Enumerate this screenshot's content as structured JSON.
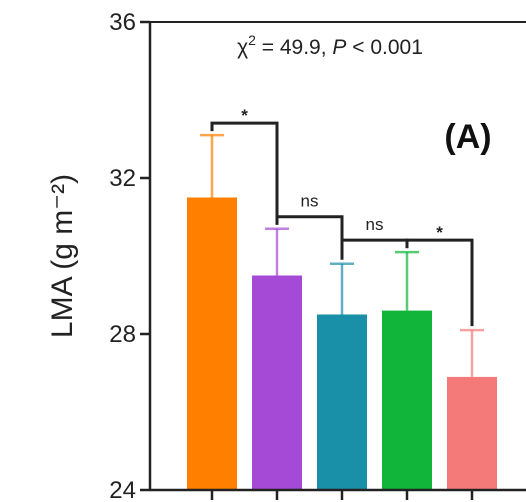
{
  "chart_data": {
    "type": "bar",
    "ylabel": "LMA (g m⁻²)",
    "ylim": [
      24,
      36
    ],
    "yticks": [
      24,
      28,
      32,
      36
    ],
    "panel_label": "(A)",
    "stat_text": {
      "prefix": "χ",
      "sup": "2",
      "middle": " = 49.9, ",
      "p_label": "P",
      "suffix": " < 0.001"
    },
    "values": [
      31.5,
      29.5,
      28.5,
      28.6,
      26.9
    ],
    "errors": [
      1.6,
      1.2,
      1.3,
      1.5,
      1.2
    ],
    "colors": [
      "#FF7F00",
      "#A54AD6",
      "#1A8FA8",
      "#11B53A",
      "#F47A7A"
    ],
    "comparisons": [
      {
        "from": 0,
        "to": 1,
        "label": "*"
      },
      {
        "from": 1,
        "to": 2,
        "label": "ns"
      },
      {
        "from": 2,
        "to": 3,
        "label": "ns"
      },
      {
        "from": 3,
        "to": 4,
        "label": "*"
      }
    ]
  }
}
